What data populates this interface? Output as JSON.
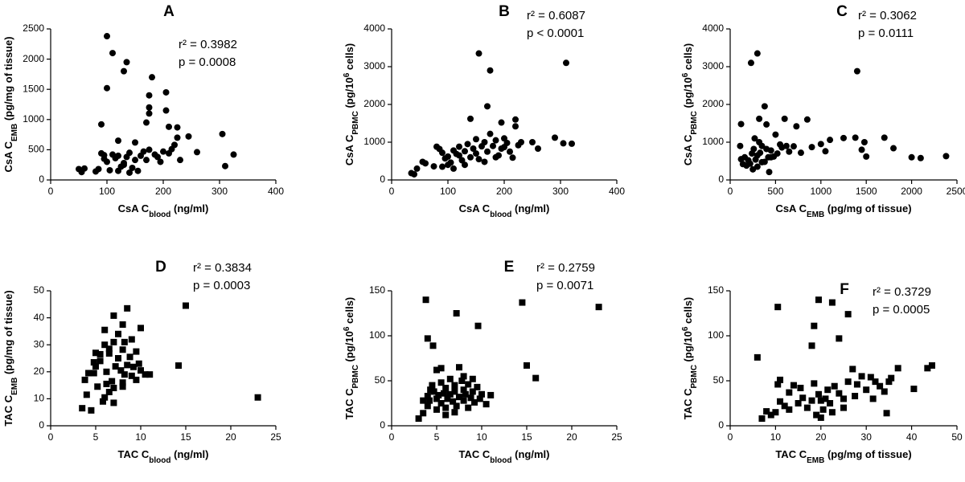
{
  "chart_data": [
    {
      "type": "scatter",
      "title": "A",
      "marker": "circle",
      "color": "#000000",
      "annotations": [
        "r² = 0.3982",
        "p = 0.0008"
      ],
      "xlabel": [
        "CsA C",
        {
          "sub": "blood"
        },
        " (ng/ml)"
      ],
      "ylabel": [
        "CsA C",
        {
          "sub": "EMB"
        },
        " (pg/mg of tissue)"
      ],
      "xlim": [
        0,
        400
      ],
      "xticks": [
        0,
        100,
        200,
        300,
        400
      ],
      "ylim": [
        0,
        2500
      ],
      "yticks": [
        0,
        500,
        1000,
        1500,
        2000,
        2500
      ],
      "x": [
        100,
        110,
        135,
        130,
        180,
        100,
        205,
        175,
        175,
        205,
        175,
        90,
        170,
        120,
        150,
        210,
        225,
        225,
        245,
        220,
        305,
        260,
        325,
        310,
        50,
        55,
        60,
        80,
        85,
        90,
        95,
        100,
        105,
        110,
        115,
        120,
        125,
        130,
        135,
        140,
        145,
        150,
        155,
        160,
        165,
        170,
        175,
        185,
        190,
        195,
        200,
        210,
        215,
        230,
        120,
        140,
        95,
        130
      ],
      "values": [
        2380,
        2100,
        1950,
        1800,
        1700,
        1520,
        1450,
        1400,
        1200,
        1150,
        1100,
        920,
        950,
        650,
        620,
        880,
        870,
        700,
        720,
        580,
        760,
        460,
        420,
        230,
        180,
        130,
        190,
        140,
        180,
        440,
        350,
        300,
        160,
        420,
        360,
        150,
        220,
        280,
        380,
        450,
        200,
        330,
        150,
        400,
        470,
        330,
        500,
        420,
        380,
        300,
        470,
        440,
        510,
        330,
        400,
        120,
        410,
        250
      ]
    },
    {
      "type": "scatter",
      "title": "B",
      "marker": "circle",
      "color": "#000000",
      "annotations": [
        "r² = 0.6087",
        "p < 0.0001"
      ],
      "xlabel": [
        "CsA C",
        {
          "sub": "blood"
        },
        " (ng/ml)"
      ],
      "ylabel": [
        "CsA C",
        {
          "sub": "PBMC"
        },
        " (pg/10",
        {
          "sup": "6"
        },
        " cells)"
      ],
      "xlim": [
        0,
        400
      ],
      "xticks": [
        0,
        100,
        200,
        300,
        400
      ],
      "ylim": [
        0,
        4000
      ],
      "yticks": [
        0,
        1000,
        2000,
        3000,
        4000
      ],
      "x": [
        155,
        175,
        310,
        170,
        140,
        195,
        220,
        220,
        290,
        305,
        320,
        250,
        260,
        35,
        40,
        45,
        55,
        60,
        80,
        85,
        90,
        90,
        95,
        100,
        105,
        110,
        115,
        120,
        125,
        130,
        135,
        140,
        145,
        150,
        150,
        155,
        160,
        165,
        170,
        175,
        180,
        185,
        190,
        195,
        200,
        205,
        210,
        215,
        225,
        230,
        100,
        120,
        165,
        185,
        130,
        110,
        75,
        200
      ],
      "values": [
        3350,
        2900,
        3100,
        1950,
        1620,
        1520,
        1600,
        1420,
        1120,
        970,
        960,
        1000,
        830,
        180,
        150,
        300,
        480,
        440,
        880,
        820,
        720,
        350,
        570,
        620,
        460,
        780,
        690,
        880,
        520,
        760,
        950,
        600,
        830,
        1080,
        700,
        550,
        890,
        1000,
        750,
        1220,
        900,
        1050,
        650,
        830,
        1100,
        980,
        750,
        590,
        920,
        1000,
        400,
        650,
        480,
        600,
        400,
        300,
        360,
        870
      ]
    },
    {
      "type": "scatter",
      "title": "C",
      "marker": "circle",
      "color": "#000000",
      "annotations": [
        "r² = 0.3062",
        "p = 0.0111"
      ],
      "xlabel": [
        "CsA C",
        {
          "sub": "EMB"
        },
        " (pg/mg of tissue)"
      ],
      "ylabel": [
        "CsA C",
        {
          "sub": "PBMC"
        },
        " (pg/10",
        {
          "sup": "6"
        },
        " cells)"
      ],
      "xlim": [
        0,
        2500
      ],
      "xticks": [
        0,
        500,
        1000,
        1500,
        2000,
        2500
      ],
      "ylim": [
        0,
        4000
      ],
      "yticks": [
        0,
        1000,
        2000,
        3000,
        4000
      ],
      "x": [
        230,
        300,
        1400,
        380,
        120,
        320,
        400,
        600,
        850,
        730,
        1380,
        1250,
        1100,
        1700,
        1480,
        1450,
        1800,
        2000,
        2100,
        2380,
        1500,
        1000,
        1050,
        900,
        780,
        700,
        650,
        550,
        500,
        480,
        450,
        420,
        400,
        380,
        350,
        330,
        300,
        280,
        260,
        240,
        220,
        200,
        180,
        160,
        140,
        120,
        110,
        250,
        300,
        350,
        430,
        450,
        520,
        570,
        320,
        620,
        270
      ],
      "values": [
        3100,
        3350,
        2880,
        1950,
        1480,
        1620,
        1470,
        1620,
        1600,
        1420,
        1120,
        1110,
        1060,
        1120,
        1000,
        800,
        840,
        600,
        580,
        630,
        620,
        950,
        760,
        870,
        720,
        890,
        750,
        940,
        1200,
        620,
        780,
        600,
        820,
        480,
        900,
        720,
        650,
        540,
        820,
        700,
        430,
        520,
        380,
        600,
        420,
        550,
        900,
        280,
        350,
        470,
        210,
        600,
        700,
        860,
        1000,
        900,
        1100
      ]
    },
    {
      "type": "scatter",
      "title": "D",
      "marker": "square",
      "color": "#000000",
      "annotations": [
        "r² = 0.3834",
        "p = 0.0003"
      ],
      "xlabel": [
        "TAC C",
        {
          "sub": "blood"
        },
        " (ng/ml)"
      ],
      "ylabel": [
        "TAC C",
        {
          "sub": "EMB"
        },
        " (pg/mg of tissue)"
      ],
      "xlim": [
        0,
        25
      ],
      "xticks": [
        0,
        5,
        10,
        15,
        20,
        25
      ],
      "ylim": [
        0,
        50
      ],
      "yticks": [
        0,
        10,
        20,
        30,
        40,
        50
      ],
      "x": [
        8.5,
        15,
        7,
        10,
        8,
        6,
        7.5,
        9,
        8.2,
        7,
        6,
        5,
        9.5,
        8,
        6.5,
        14.2,
        23,
        3.5,
        4.5,
        4,
        3.8,
        4.2,
        4.8,
        5,
        5.2,
        5.5,
        5.8,
        6,
        6.2,
        6.5,
        6.8,
        7,
        7.2,
        7.5,
        7.8,
        8,
        8.2,
        8.5,
        8.8,
        9,
        9.2,
        9.5,
        9.8,
        10,
        10.5,
        11,
        5.5,
        6.2,
        7,
        8,
        4.8,
        6.5
      ],
      "values": [
        43.5,
        44.5,
        40.8,
        36.2,
        37.5,
        35.5,
        34,
        32,
        31,
        31,
        30,
        27,
        27.5,
        28.2,
        28.5,
        22.3,
        10.5,
        6.5,
        5.7,
        11.5,
        17,
        19.5,
        19.5,
        22,
        14.5,
        24,
        9,
        10.5,
        20,
        12.5,
        16.5,
        8.5,
        22,
        25,
        20.5,
        16,
        19,
        22.5,
        25.5,
        18.5,
        21.8,
        17,
        23,
        20.5,
        19,
        19,
        26.5,
        15.5,
        14,
        14.5,
        23.5,
        26.8
      ]
    },
    {
      "type": "scatter",
      "title": "E",
      "marker": "square",
      "color": "#000000",
      "annotations": [
        "r² = 0.2759",
        "p = 0.0071"
      ],
      "xlabel": [
        "TAC C",
        {
          "sub": "blood"
        },
        " (ng/ml)"
      ],
      "ylabel": [
        "TAC C",
        {
          "sub": "PBMC"
        },
        " (pg/10",
        {
          "sup": "6"
        },
        " cells)"
      ],
      "xlim": [
        0,
        25
      ],
      "xticks": [
        0,
        5,
        10,
        15,
        20,
        25
      ],
      "ylim": [
        0,
        150
      ],
      "yticks": [
        0,
        50,
        100,
        150
      ],
      "x": [
        3.8,
        14.5,
        23,
        7.2,
        9.6,
        4,
        4.6,
        15,
        16,
        5,
        5.5,
        7.5,
        8,
        3,
        3.5,
        3.5,
        4,
        4,
        4.3,
        4.5,
        4.7,
        5,
        5,
        5.2,
        5.5,
        5.5,
        5.8,
        6,
        6,
        6.2,
        6.5,
        6.5,
        6.8,
        7,
        7,
        7.2,
        7.5,
        7.8,
        8,
        8,
        8.2,
        8.5,
        8.5,
        8.8,
        9,
        9.2,
        9.5,
        9.8,
        10,
        11,
        10.5,
        6,
        7,
        4.2,
        9
      ],
      "values": [
        140,
        137,
        132,
        125,
        111,
        97,
        89,
        67,
        53,
        62,
        64,
        65,
        55,
        8,
        14,
        28,
        22,
        33,
        40,
        45,
        38,
        30,
        18,
        34,
        25,
        48,
        36,
        42,
        20,
        30,
        52,
        35,
        27,
        45,
        38,
        22,
        32,
        50,
        40,
        28,
        35,
        46,
        20,
        31,
        38,
        26,
        43,
        30,
        35,
        34,
        24,
        12,
        15,
        28,
        52
      ]
    },
    {
      "type": "scatter",
      "title": "F",
      "marker": "square",
      "color": "#000000",
      "annotations": [
        "r² = 0.3729",
        "p = 0.0005"
      ],
      "xlabel": [
        "TAC C",
        {
          "sub": "EMB"
        },
        " (pg/mg of tissue)"
      ],
      "ylabel": [
        "TAC C",
        {
          "sub": "PBMC"
        },
        " (pg/10",
        {
          "sup": "6"
        },
        " cells)"
      ],
      "xlim": [
        0,
        50
      ],
      "xticks": [
        0,
        10,
        20,
        30,
        40,
        50
      ],
      "ylim": [
        0,
        150
      ],
      "yticks": [
        0,
        50,
        100,
        150
      ],
      "x": [
        19.5,
        22.5,
        10.5,
        26,
        18.5,
        18,
        24,
        6,
        11,
        10.5,
        7,
        8,
        9,
        10,
        12,
        11,
        13,
        14,
        15,
        15.5,
        16,
        17,
        18,
        18.5,
        19,
        19.5,
        20,
        20.5,
        21,
        21.5,
        22,
        22.5,
        23,
        24,
        25,
        26,
        27,
        27.5,
        28,
        29,
        30,
        31,
        31.5,
        32,
        33,
        34,
        34.5,
        35,
        35.5,
        37,
        40.5,
        43.5,
        44.5,
        25,
        20,
        13
      ],
      "values": [
        140,
        137,
        132,
        124,
        111,
        89,
        97,
        76,
        51,
        46,
        8,
        16,
        12,
        15,
        22,
        27,
        37,
        45,
        25,
        42,
        31,
        20,
        28,
        47,
        12,
        35,
        9,
        18,
        30,
        40,
        25,
        15,
        44,
        36,
        30,
        49,
        63,
        33,
        46,
        55,
        40,
        54,
        30,
        49,
        44,
        38,
        14,
        49,
        53,
        64,
        41,
        64,
        67,
        20,
        28,
        18
      ]
    }
  ]
}
